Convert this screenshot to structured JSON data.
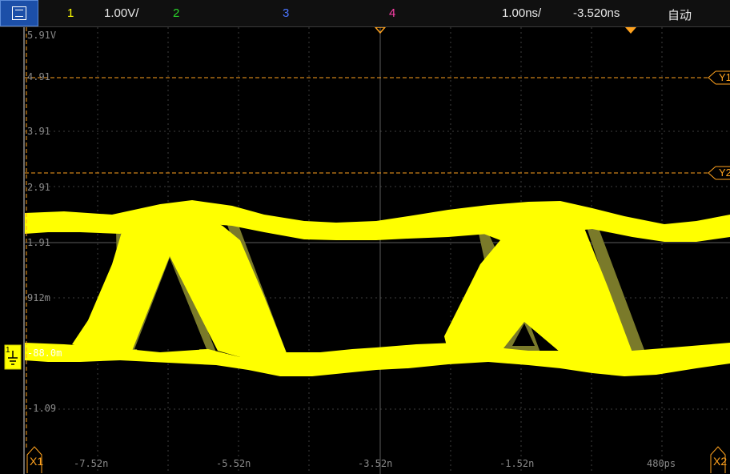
{
  "toolbar": {
    "ch1_num": "1",
    "ch1_scale": "1.00V/",
    "ch2_num": "2",
    "ch3_num": "3",
    "ch4_num": "4",
    "time_scale": "1.00ns/",
    "time_offset": "-3.520ns",
    "trigger_mode": "自动"
  },
  "colors": {
    "ch1": "#ffff00",
    "ch2": "#2bd62b",
    "ch3": "#4a74ff",
    "ch4": "#ff3fa9",
    "cursor": "#ffa21e",
    "grid": "#404040",
    "toolbar_button": "#1c4fa8"
  },
  "icons": {
    "menu": "menu-icon",
    "ground": "ground-marker-icon",
    "trigger": "trigger-position-icon"
  },
  "vertical_labels": [
    "5.91V",
    "4.91",
    "3.91",
    "2.91",
    "1.91",
    "912m",
    "-88.0m",
    "-1.09"
  ],
  "time_labels": [
    "-7.52n",
    "-5.52n",
    "-3.52n",
    "-1.52n",
    "480ps"
  ],
  "cursors": {
    "y1_label": "Y1",
    "y2_label": "Y2",
    "x1_label": "X1",
    "x2_label": "X2"
  },
  "channel_marker": "1"
}
